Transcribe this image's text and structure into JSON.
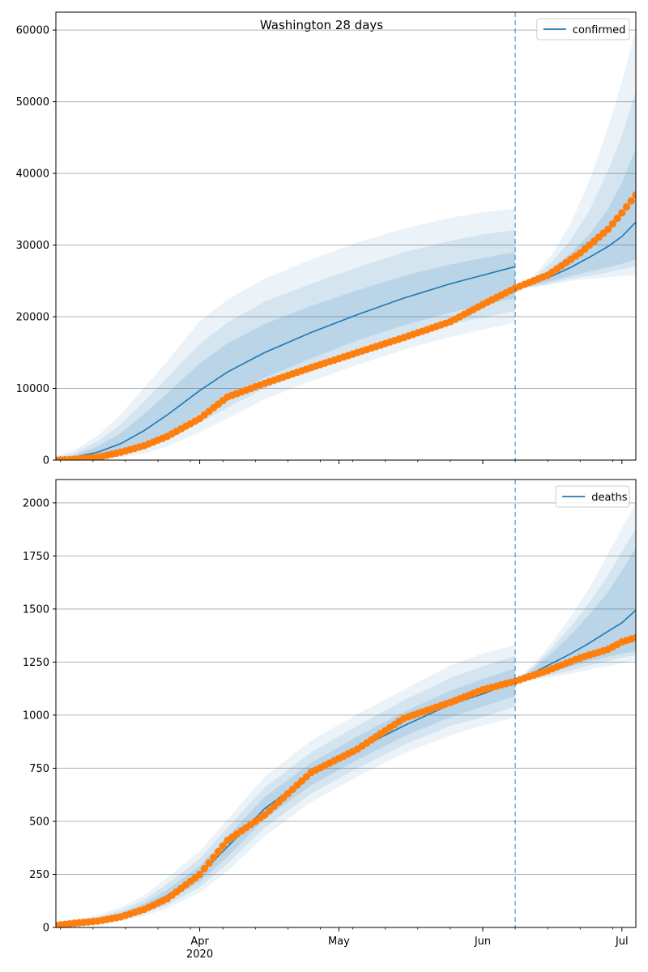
{
  "figure": {
    "title": "Washington 28 days"
  },
  "chart_data": [
    {
      "type": "line",
      "title": "Washington 28 days",
      "legend": {
        "label": "confirmed",
        "placement": "top-right"
      },
      "xlim": [
        "2020-03-01",
        "2020-07-04"
      ],
      "ylim": [
        0,
        62500
      ],
      "yticks": [
        0,
        10000,
        20000,
        30000,
        40000,
        50000,
        60000
      ],
      "xticks": [
        {
          "date": "2020-04-01",
          "label": "Apr",
          "sublabel": "2020"
        },
        {
          "date": "2020-05-01",
          "label": "May",
          "sublabel": ""
        },
        {
          "date": "2020-06-01",
          "label": "Jun",
          "sublabel": ""
        },
        {
          "date": "2020-07-01",
          "label": "Jul",
          "sublabel": ""
        }
      ],
      "grid": "y",
      "forecast_start": "2020-06-08",
      "model": {
        "name": "confirmed",
        "color": "#1f77b4",
        "fit": {
          "x": [
            "2020-03-01",
            "2020-03-05",
            "2020-03-10",
            "2020-03-15",
            "2020-03-20",
            "2020-03-25",
            "2020-04-01",
            "2020-04-07",
            "2020-04-15",
            "2020-04-25",
            "2020-05-05",
            "2020-05-15",
            "2020-05-25",
            "2020-06-01",
            "2020-06-08"
          ],
          "median": [
            0,
            400,
            1100,
            2300,
            4100,
            6300,
            9700,
            12300,
            15000,
            17800,
            20300,
            22600,
            24600,
            25800,
            27000
          ],
          "bands": [
            {
              "lower": [
                0,
                200,
                500,
                1100,
                2200,
                3800,
                6500,
                8800,
                11500,
                14200,
                16700,
                18800,
                20600,
                21600,
                22600
              ],
              "upper": [
                100,
                700,
                1900,
                3800,
                6400,
                9300,
                13500,
                16300,
                19000,
                21500,
                23700,
                25700,
                27300,
                28200,
                29000
              ]
            },
            {
              "lower": [
                0,
                100,
                300,
                700,
                1500,
                2800,
                5200,
                7300,
                10000,
                12600,
                15000,
                17100,
                18900,
                19900,
                20800
              ],
              "upper": [
                300,
                1000,
                2600,
                5000,
                8200,
                11500,
                16200,
                19200,
                22100,
                24600,
                26900,
                29000,
                30600,
                31500,
                32100
              ]
            },
            {
              "lower": [
                0,
                50,
                150,
                400,
                900,
                1900,
                3900,
                5800,
                8500,
                11000,
                13300,
                15400,
                17200,
                18200,
                19200
              ],
              "upper": [
                600,
                1400,
                3400,
                6400,
                10100,
                13800,
                19400,
                22400,
                25300,
                28000,
                30400,
                32300,
                33800,
                34600,
                35100
              ]
            }
          ]
        },
        "forecast": {
          "x": [
            "2020-06-08",
            "2020-06-12",
            "2020-06-16",
            "2020-06-20",
            "2020-06-24",
            "2020-06-28",
            "2020-07-01",
            "2020-07-04"
          ],
          "median": [
            24000,
            24700,
            25700,
            26900,
            28300,
            29800,
            31200,
            33200
          ],
          "bands": [
            {
              "lower": [
                24000,
                24400,
                25000,
                25700,
                26300,
                26900,
                27400,
                28000
              ],
              "upper": [
                24000,
                25000,
                26700,
                28900,
                31500,
                35000,
                38700,
                43500
              ]
            },
            {
              "lower": [
                24000,
                24200,
                24700,
                25300,
                25700,
                26200,
                26600,
                27100
              ],
              "upper": [
                24000,
                25400,
                27700,
                30800,
                34800,
                40400,
                45200,
                51600
              ]
            },
            {
              "lower": [
                24000,
                24100,
                24500,
                25000,
                25300,
                25500,
                25700,
                25800
              ],
              "upper": [
                24000,
                25800,
                28700,
                33100,
                39000,
                46400,
                52800,
                60200
              ]
            }
          ]
        }
      },
      "observed": {
        "color": "#ff7f0e",
        "x": [
          "2020-03-01",
          "2020-03-05",
          "2020-03-10",
          "2020-03-15",
          "2020-03-20",
          "2020-03-25",
          "2020-04-01",
          "2020-04-07",
          "2020-04-15",
          "2020-04-25",
          "2020-05-05",
          "2020-05-15",
          "2020-05-25",
          "2020-06-01",
          "2020-06-08",
          "2020-06-15",
          "2020-06-22",
          "2020-06-28",
          "2020-07-01",
          "2020-07-04"
        ],
        "y": [
          0,
          100,
          400,
          1100,
          2000,
          3300,
          5800,
          8800,
          10700,
          12900,
          15000,
          17100,
          19300,
          21700,
          24000,
          25800,
          28900,
          32200,
          34500,
          37000
        ]
      }
    },
    {
      "type": "line",
      "title": "",
      "legend": {
        "label": "deaths",
        "placement": "top-right"
      },
      "xlim": [
        "2020-03-01",
        "2020-07-04"
      ],
      "ylim": [
        0,
        2110
      ],
      "yticks": [
        0,
        250,
        500,
        750,
        1000,
        1250,
        1500,
        1750,
        2000
      ],
      "xticks": [
        {
          "date": "2020-04-01",
          "label": "Apr",
          "sublabel": "2020"
        },
        {
          "date": "2020-05-01",
          "label": "May",
          "sublabel": ""
        },
        {
          "date": "2020-06-01",
          "label": "Jun",
          "sublabel": ""
        },
        {
          "date": "2020-07-01",
          "label": "Jul",
          "sublabel": ""
        }
      ],
      "grid": "y",
      "forecast_start": "2020-06-08",
      "model": {
        "name": "deaths",
        "color": "#1f77b4",
        "fit": {
          "x": [
            "2020-03-01",
            "2020-03-05",
            "2020-03-10",
            "2020-03-15",
            "2020-03-20",
            "2020-03-25",
            "2020-04-01",
            "2020-04-07",
            "2020-04-15",
            "2020-04-25",
            "2020-05-05",
            "2020-05-15",
            "2020-05-25",
            "2020-06-01",
            "2020-06-08"
          ],
          "median": [
            10,
            20,
            35,
            55,
            95,
            150,
            250,
            380,
            560,
            720,
            840,
            950,
            1050,
            1100,
            1160
          ],
          "bands": [
            {
              "lower": [
                8,
                15,
                28,
                45,
                80,
                125,
                215,
                335,
                510,
                670,
                790,
                900,
                990,
                1040,
                1090
              ],
              "upper": [
                12,
                25,
                42,
                68,
                112,
                178,
                290,
                430,
                615,
                775,
                900,
                1015,
                1115,
                1170,
                1220
              ]
            },
            {
              "lower": [
                6,
                12,
                22,
                38,
                68,
                105,
                190,
                300,
                470,
                630,
                750,
                860,
                950,
                990,
                1040
              ],
              "upper": [
                15,
                30,
                50,
                80,
                130,
                205,
                325,
                470,
                660,
                825,
                950,
                1070,
                1175,
                1230,
                1280
              ]
            },
            {
              "lower": [
                5,
                10,
                18,
                30,
                55,
                90,
                165,
                265,
                430,
                590,
                710,
                820,
                905,
                950,
                990
              ],
              "upper": [
                18,
                35,
                58,
                95,
                150,
                235,
                360,
                510,
                710,
                880,
                1005,
                1120,
                1235,
                1290,
                1330
              ]
            }
          ]
        },
        "forecast": {
          "x": [
            "2020-06-08",
            "2020-06-12",
            "2020-06-16",
            "2020-06-20",
            "2020-06-24",
            "2020-06-28",
            "2020-07-01",
            "2020-07-04"
          ],
          "median": [
            1160,
            1200,
            1245,
            1290,
            1340,
            1395,
            1435,
            1495
          ],
          "bands": [
            {
              "lower": [
                1160,
                1180,
                1205,
                1230,
                1255,
                1275,
                1290,
                1300
              ],
              "upper": [
                1160,
                1220,
                1295,
                1380,
                1475,
                1580,
                1680,
                1790
              ]
            },
            {
              "lower": [
                1160,
                1172,
                1190,
                1210,
                1235,
                1255,
                1270,
                1285
              ],
              "upper": [
                1160,
                1230,
                1320,
                1420,
                1530,
                1660,
                1770,
                1880
              ]
            },
            {
              "lower": [
                1160,
                1165,
                1180,
                1195,
                1215,
                1230,
                1245,
                1260
              ],
              "upper": [
                1160,
                1240,
                1345,
                1465,
                1600,
                1760,
                1880,
                2000
              ]
            }
          ]
        }
      },
      "observed": {
        "color": "#ff7f0e",
        "x": [
          "2020-03-01",
          "2020-03-05",
          "2020-03-10",
          "2020-03-15",
          "2020-03-20",
          "2020-03-25",
          "2020-04-01",
          "2020-04-07",
          "2020-04-15",
          "2020-04-25",
          "2020-05-05",
          "2020-05-15",
          "2020-05-25",
          "2020-06-01",
          "2020-06-08",
          "2020-06-15",
          "2020-06-22",
          "2020-06-28",
          "2020-07-01",
          "2020-07-04"
        ],
        "y": [
          10,
          20,
          30,
          50,
          85,
          135,
          250,
          410,
          530,
          730,
          840,
          985,
          1060,
          1120,
          1160,
          1210,
          1270,
          1310,
          1345,
          1365
        ]
      }
    }
  ]
}
